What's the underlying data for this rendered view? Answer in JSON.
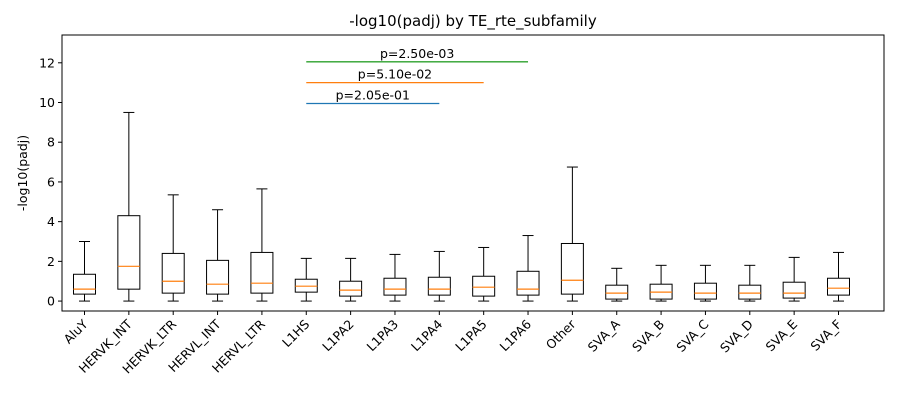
{
  "chart_data": {
    "type": "box",
    "title": "-log10(padj) by TE_rte_subfamily",
    "xlabel": "",
    "ylabel": "-log10(padj)",
    "ylim": [
      -0.5,
      13.4
    ],
    "yticks": [
      0,
      2,
      4,
      6,
      8,
      10,
      12
    ],
    "grid": false,
    "colors": {
      "box": "#000000",
      "median": "#ff7f0e"
    },
    "categories": [
      "AluY",
      "HERVK_INT",
      "HERVK_LTR",
      "HERVL_INT",
      "HERVL_LTR",
      "L1HS",
      "L1PA2",
      "L1PA3",
      "L1PA4",
      "L1PA5",
      "L1PA6",
      "Other",
      "SVA_A",
      "SVA_B",
      "SVA_C",
      "SVA_D",
      "SVA_E",
      "SVA_F"
    ],
    "boxes": [
      {
        "whislo": 0.0,
        "q1": 0.35,
        "med": 0.6,
        "q3": 1.35,
        "whishi": 3.0
      },
      {
        "whislo": 0.0,
        "q1": 0.6,
        "med": 1.75,
        "q3": 4.3,
        "whishi": 9.5
      },
      {
        "whislo": 0.0,
        "q1": 0.4,
        "med": 1.0,
        "q3": 2.4,
        "whishi": 5.35
      },
      {
        "whislo": 0.0,
        "q1": 0.35,
        "med": 0.85,
        "q3": 2.05,
        "whishi": 4.6
      },
      {
        "whislo": 0.0,
        "q1": 0.4,
        "med": 0.9,
        "q3": 2.45,
        "whishi": 5.65
      },
      {
        "whislo": 0.0,
        "q1": 0.45,
        "med": 0.75,
        "q3": 1.1,
        "whishi": 2.15
      },
      {
        "whislo": 0.0,
        "q1": 0.25,
        "med": 0.55,
        "q3": 1.0,
        "whishi": 2.15
      },
      {
        "whislo": 0.0,
        "q1": 0.3,
        "med": 0.6,
        "q3": 1.15,
        "whishi": 2.35
      },
      {
        "whislo": 0.0,
        "q1": 0.3,
        "med": 0.6,
        "q3": 1.2,
        "whishi": 2.5
      },
      {
        "whislo": 0.0,
        "q1": 0.25,
        "med": 0.7,
        "q3": 1.25,
        "whishi": 2.7
      },
      {
        "whislo": 0.0,
        "q1": 0.3,
        "med": 0.6,
        "q3": 1.5,
        "whishi": 3.3
      },
      {
        "whislo": 0.0,
        "q1": 0.35,
        "med": 1.05,
        "q3": 2.9,
        "whishi": 6.75
      },
      {
        "whislo": 0.0,
        "q1": 0.1,
        "med": 0.4,
        "q3": 0.8,
        "whishi": 1.65
      },
      {
        "whislo": 0.0,
        "q1": 0.1,
        "med": 0.45,
        "q3": 0.85,
        "whishi": 1.8
      },
      {
        "whislo": 0.0,
        "q1": 0.1,
        "med": 0.4,
        "q3": 0.9,
        "whishi": 1.8
      },
      {
        "whislo": 0.0,
        "q1": 0.1,
        "med": 0.4,
        "q3": 0.8,
        "whishi": 1.8
      },
      {
        "whislo": 0.0,
        "q1": 0.15,
        "med": 0.4,
        "q3": 0.95,
        "whishi": 2.2
      },
      {
        "whislo": 0.0,
        "q1": 0.3,
        "med": 0.65,
        "q3": 1.15,
        "whishi": 2.45
      }
    ],
    "annotations": [
      {
        "text": "p=2.50e-03",
        "from": "L1HS",
        "to": "L1PA6",
        "y": 12.05,
        "color": "#2ca02c"
      },
      {
        "text": "p=5.10e-02",
        "from": "L1HS",
        "to": "L1PA5",
        "y": 11.0,
        "color": "#ff7f0e"
      },
      {
        "text": "p=2.05e-01",
        "from": "L1HS",
        "to": "L1PA4",
        "y": 9.95,
        "color": "#1f77b4"
      }
    ]
  }
}
